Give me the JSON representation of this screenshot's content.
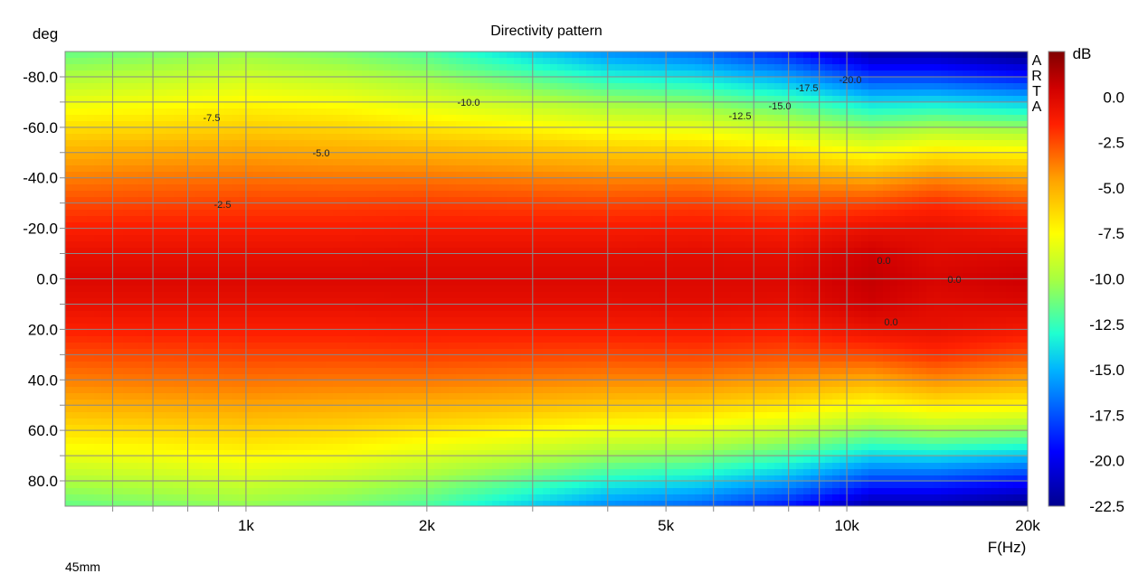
{
  "chart_data": {
    "type": "heatmap",
    "title": "Directivity pattern",
    "xlabel": "F(Hz)",
    "ylabel": "deg",
    "colorbar_label": "dB",
    "footer_note": "45mm",
    "watermark": "ARTA",
    "xscale": "log",
    "xlim": [
      500,
      20000
    ],
    "ylim": [
      -90,
      90
    ],
    "clim": [
      -22.5,
      2.5
    ],
    "grid": true,
    "x_tick_labels": [
      {
        "value": 1000,
        "label": "1k"
      },
      {
        "value": 2000,
        "label": "2k"
      },
      {
        "value": 5000,
        "label": "5k"
      },
      {
        "value": 10000,
        "label": "10k"
      },
      {
        "value": 20000,
        "label": "20k"
      }
    ],
    "x_minor_grid": [
      600,
      700,
      800,
      900,
      3000,
      4000,
      6000,
      7000,
      8000,
      9000
    ],
    "y_tick_labels": [
      "-80.0",
      "-60.0",
      "-40.0",
      "-20.0",
      "0.0",
      "20.0",
      "40.0",
      "60.0",
      "80.0"
    ],
    "y_tick_values": [
      -80,
      -60,
      -40,
      -20,
      0,
      20,
      40,
      60,
      80
    ],
    "colorbar_tick_labels": [
      "0.0",
      "-2.5",
      "-5.0",
      "-7.5",
      "-10.0",
      "-12.5",
      "-15.0",
      "-17.5",
      "-20.0",
      "-22.5"
    ],
    "colorbar_tick_values": [
      0,
      -2.5,
      -5,
      -7.5,
      -10,
      -12.5,
      -15,
      -17.5,
      -20,
      -22.5
    ],
    "symmetric_about_zero_deg": true,
    "angles": [
      0,
      10,
      20,
      30,
      40,
      50,
      60,
      70,
      80,
      90
    ],
    "frequencies": [
      500,
      700,
      1000,
      1400,
      2000,
      2800,
      4000,
      5600,
      8000,
      11000,
      14000,
      20000
    ],
    "values_db": [
      [
        0,
        -0.5,
        -1.4,
        -2.5,
        -3.7,
        -5.0,
        -6.5,
        -8.1,
        -9.8,
        -11.5
      ],
      [
        0,
        -0.5,
        -1.3,
        -2.4,
        -3.5,
        -4.8,
        -6.3,
        -7.8,
        -9.4,
        -11.0
      ],
      [
        0,
        -0.5,
        -1.3,
        -2.3,
        -3.4,
        -4.6,
        -6.0,
        -7.4,
        -8.9,
        -10.5
      ],
      [
        0,
        -0.5,
        -1.3,
        -2.3,
        -3.5,
        -4.8,
        -6.2,
        -7.7,
        -9.4,
        -11.0
      ],
      [
        0,
        -0.4,
        -1.2,
        -2.2,
        -3.5,
        -5.0,
        -6.7,
        -8.5,
        -10.3,
        -12.0
      ],
      [
        0,
        -0.4,
        -1.2,
        -2.3,
        -3.7,
        -5.3,
        -7.2,
        -9.3,
        -11.6,
        -14.0
      ],
      [
        0,
        -0.4,
        -1.2,
        -2.4,
        -3.9,
        -5.7,
        -7.9,
        -10.3,
        -13.1,
        -16.0
      ],
      [
        0,
        -0.3,
        -1.1,
        -2.3,
        -3.9,
        -5.9,
        -8.2,
        -10.8,
        -13.8,
        -17.0
      ],
      [
        0,
        -0.4,
        -1.3,
        -2.6,
        -4.4,
        -6.6,
        -9.2,
        -12.1,
        -15.4,
        -19.0
      ],
      [
        0.8,
        0.5,
        -0.6,
        -2.4,
        -4.8,
        -7.6,
        -10.6,
        -14.0,
        -18.0,
        -22.0
      ],
      [
        0.2,
        -0.2,
        -0.5,
        -1.8,
        -4.0,
        -6.8,
        -10.0,
        -13.8,
        -18.0,
        -22.0
      ],
      [
        0.6,
        0.0,
        -1.0,
        -2.6,
        -4.6,
        -7.2,
        -10.5,
        -14.5,
        -19.0,
        -23.0
      ]
    ],
    "contour_labels": [
      "-7.5",
      "-10.0",
      "-5.0",
      "-2.5",
      "-12.5",
      "-15.0",
      "-17.5",
      "-20.0",
      "0.0",
      "0.0",
      "0.0"
    ]
  }
}
